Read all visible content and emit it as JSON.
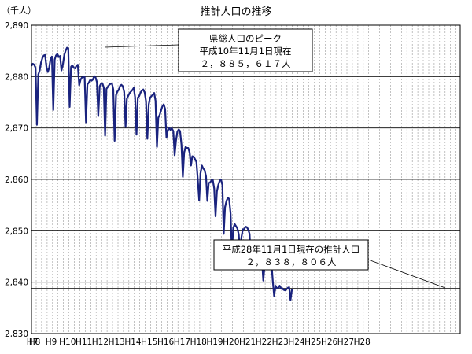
{
  "chart_data": {
    "type": "line",
    "title": "推計人口の推移",
    "ylabel": "（千人）",
    "xlabel": "",
    "ylim": [
      2830,
      2890
    ],
    "y_ticks": [
      "2,830",
      "2,840",
      "2,850",
      "2,860",
      "2,870",
      "2,880",
      "2,890"
    ],
    "grid": true,
    "legend": "none",
    "year_labels": [
      "H8",
      "H9",
      "H10",
      "H11",
      "H12",
      "H13",
      "H14",
      "H15",
      "H16",
      "H17",
      "H18",
      "H19",
      "H20",
      "H21",
      "H22",
      "H23",
      "H24",
      "H25",
      "H26",
      "H27",
      "H28"
    ],
    "axis_start_label": "H7",
    "colors": {
      "line": "#1a237e",
      "grid_major": "#000000",
      "grid_minor": "#999999"
    },
    "series": [
      {
        "values": [
          [
            2882.1,
            2882.5,
            2882.3,
            2881.7,
            2870.6,
            2880.4,
            2881.2,
            2882.7,
            2883.6,
            2884.1,
            2884.2,
            2881.8
          ],
          [
            2880.9,
            2881.7,
            2883.5,
            2883.9,
            2873.5,
            2883.3,
            2884.1,
            2884.4,
            2883.8,
            2884.0,
            2881.2,
            2882.3
          ],
          [
            2884.1,
            2885.0,
            2885.6,
            2885.5,
            2874.1,
            2881.9,
            2882.2,
            2881.7,
            2881.6,
            2882.1,
            2882.3,
            2878.3
          ],
          [
            2879.4,
            2879.8,
            2879.9,
            2879.9,
            2871.1,
            2878.5,
            2878.8,
            2879.3,
            2879.2,
            2879.4,
            2880.1,
            2879.8
          ],
          [
            2878.9,
            2872.3,
            2878.1,
            2878.6,
            2878.7,
            2877.9,
            2868.5,
            2877.6,
            2878.0,
            2878.4,
            2878.6,
            2878.7
          ],
          [
            2877.5,
            2867.5,
            2876.4,
            2877.1,
            2877.4,
            2878.2,
            2878.4,
            2878.1,
            2877.0,
            2870.2,
            2875.7,
            2876.3
          ],
          [
            2876.8,
            2877.1,
            2877.4,
            2877.8,
            2876.0,
            2868.7,
            2875.9,
            2876.2,
            2876.9,
            2877.3,
            2877.5,
            2876.9
          ],
          [
            2875.2,
            2867.9,
            2874.6,
            2875.9,
            2876.2,
            2876.5,
            2876.8,
            2875.3,
            2866.3,
            2872.0,
            2872.5,
            2873.4
          ],
          [
            2874.2,
            2874.6,
            2873.7,
            2868.1,
            2869.5,
            2870.0,
            2869.6,
            2869.9,
            2869.4,
            2864.7,
            2867.5,
            2869.3
          ],
          [
            2869.7,
            2869.4,
            2866.7,
            2860.5,
            2865.2,
            2866.3,
            2866.1,
            2866.1,
            2865.2,
            2862.7,
            2864.5,
            2864.4
          ],
          [
            2863.9,
            2863.4,
            2859.8,
            2855.9,
            2861.2,
            2862.7,
            2862.1,
            2861.8,
            2860.6,
            2855.8,
            2859.3,
            2859.4
          ],
          [
            2859.8,
            2859.9,
            2858.2,
            2852.8,
            2857.6,
            2858.9,
            2859.7,
            2860.0,
            2858.9,
            2849.4,
            2854.6,
            2855.8
          ],
          [
            2856.4,
            2856.2,
            2853.4,
            2845.8,
            2850.5,
            2851.3,
            2850.9,
            2850.5,
            2849.3,
            2845.8,
            2848.7,
            2850.3
          ],
          [
            2850.3,
            2850.8,
            2850.7,
            2850.2,
            2849.4,
            2843.1,
            2846.5,
            2846.6,
            2846.4,
            2846.4,
            2846.9,
            2847.3
          ],
          [
            2845.3,
            2844.7,
            2840.3,
            2843.3,
            2843.7,
            2843.8,
            2843.7,
            2844.1,
            2843.7,
            2840.2,
            2837.3,
            2839.3
          ],
          [
            2838.8,
            2838.9,
            2839.3,
            2838.8,
            2838.8,
            2838.5,
            2838.4,
            2838.6,
            2838.9,
            2839.0,
            2836.5,
            2838.6
          ]
        ]
      }
    ],
    "annotations": [
      {
        "lines": [
          "県総人口のピーク",
          "平成10年11月1日現在",
          "２，８８５，６１７人"
        ]
      },
      {
        "lines": [
          "平成28年11月1日現在の推計人口",
          "２，８３８，８０６人"
        ]
      }
    ]
  }
}
